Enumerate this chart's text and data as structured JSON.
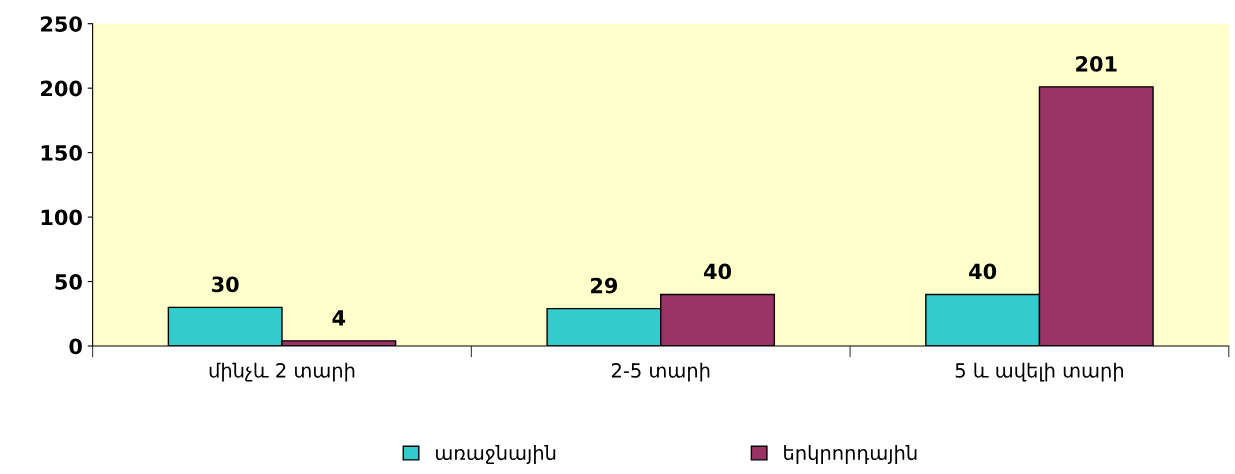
{
  "chart_data": {
    "type": "bar",
    "categories": [
      "մինչև 2 տարի",
      "2-5 տարի",
      "5 և ավելի տարի"
    ],
    "series": [
      {
        "name": "առաջնային",
        "color": "#33cccc",
        "values": [
          30,
          29,
          40
        ]
      },
      {
        "name": "երկրորդային",
        "color": "#993366",
        "values": [
          4,
          40,
          201
        ]
      }
    ],
    "ylim": [
      0,
      250
    ],
    "yticks": [
      0,
      50,
      100,
      150,
      200,
      250
    ],
    "grid": false,
    "legend": "bottom",
    "data_labels": true
  }
}
